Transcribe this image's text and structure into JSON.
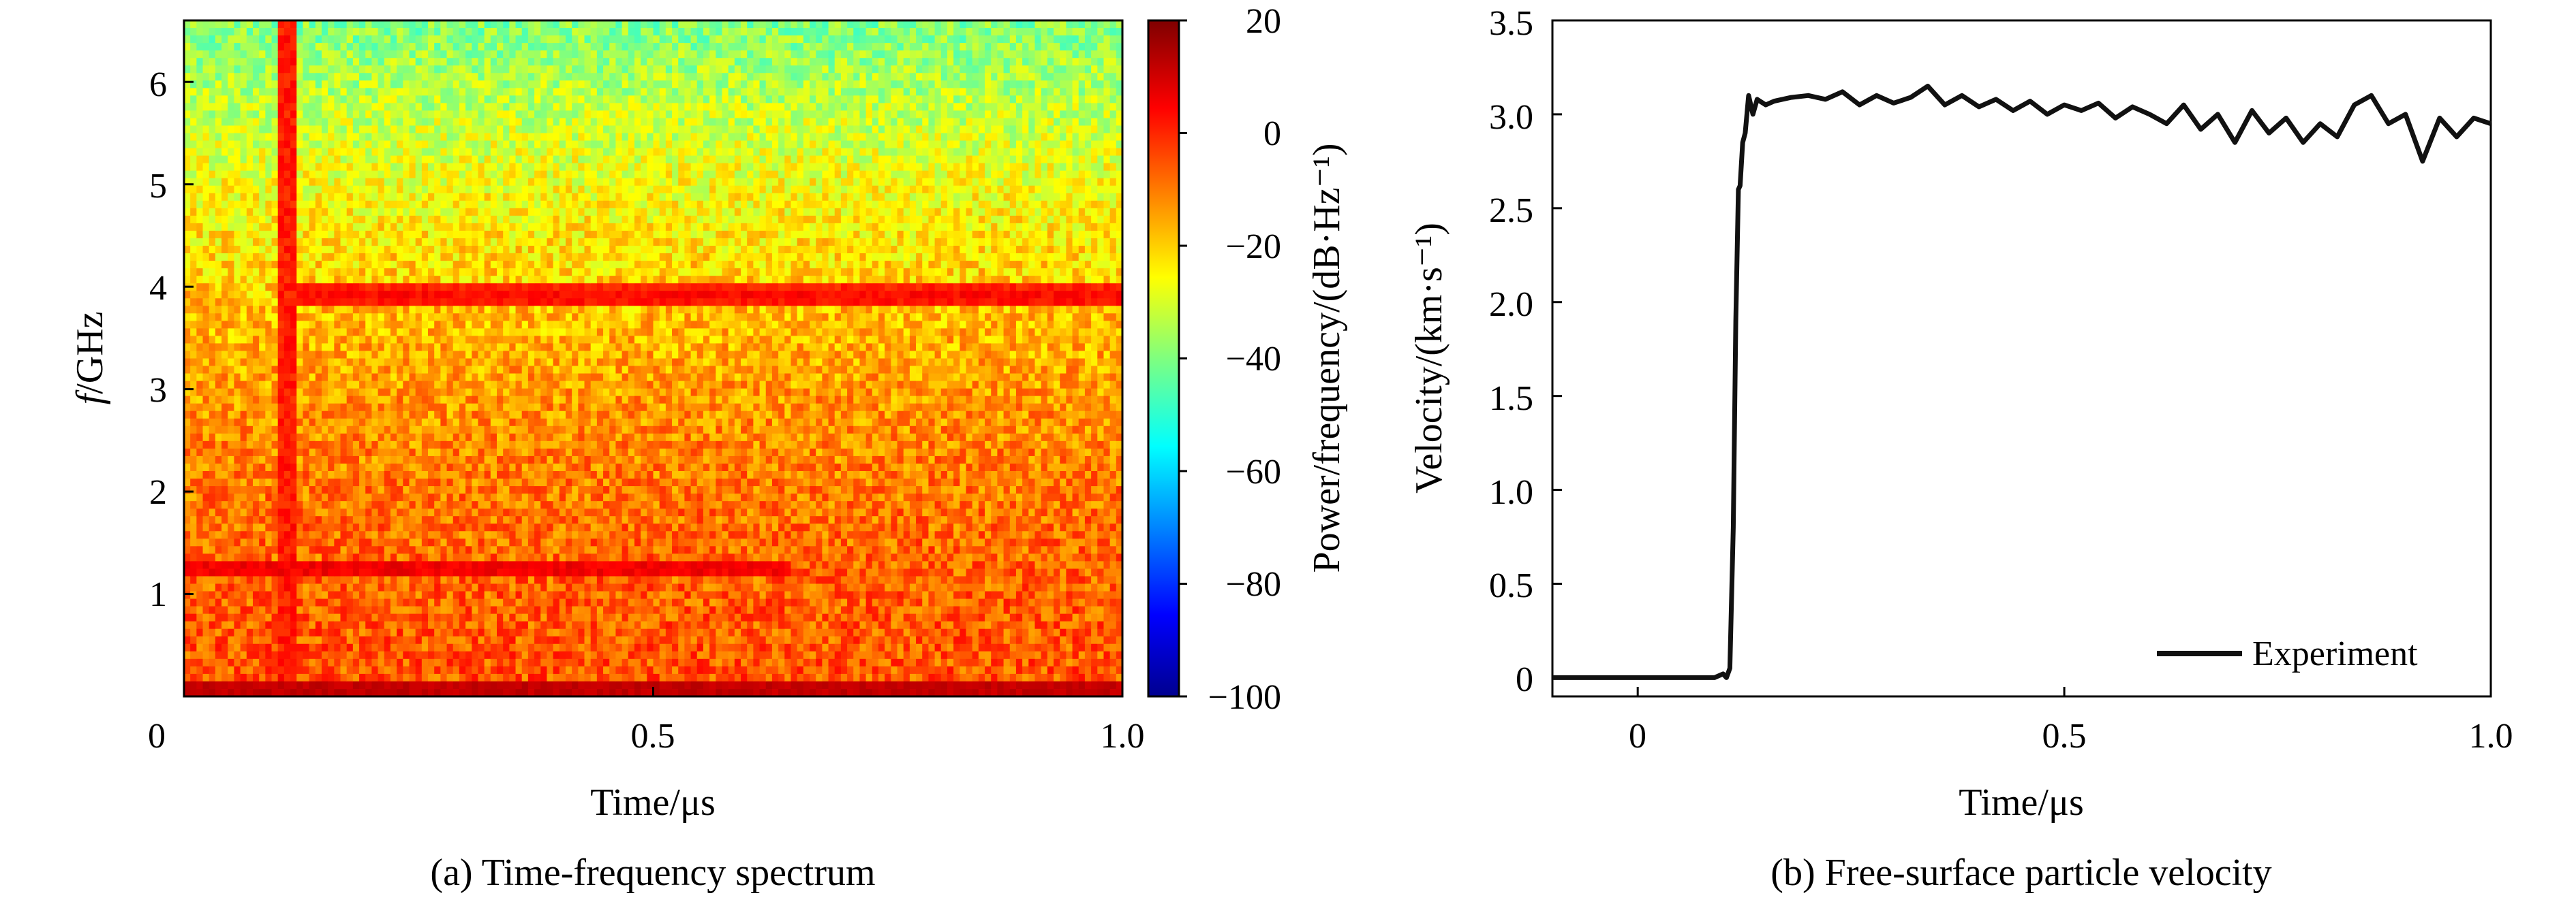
{
  "chart_data": [
    {
      "type": "heatmap",
      "xlabel": "Time/μs",
      "ylabel_italic": "f",
      "ylabel_rest": "/GHz",
      "caption": "(a) Time-frequency spectrum",
      "xlim": [
        0,
        1.0
      ],
      "ylim": [
        0,
        6.6
      ],
      "xticks": [
        0,
        0.5,
        1.0
      ],
      "xtick_labels": [
        "0",
        "0.5",
        "1.0"
      ],
      "yticks": [
        1,
        2,
        3,
        4,
        5,
        6
      ],
      "ytick_labels": [
        "1",
        "2",
        "3",
        "4",
        "5",
        "6"
      ],
      "colorbar": {
        "label": "Power/frequency/(dB·Hz⁻¹)",
        "range": [
          -100,
          20
        ],
        "ticks": [
          20,
          0,
          -20,
          -40,
          -60,
          -80,
          -100
        ],
        "tick_labels": [
          "20",
          "0",
          "−20",
          "−40",
          "−60",
          "−80",
          "−100"
        ],
        "colormap": "jet"
      },
      "features": {
        "background_low_freq_dB": -5,
        "background_high_freq_dB": -40,
        "rise_time_us": 0.11,
        "upper_band_GHz": 3.9,
        "upper_band_dB": 5,
        "lower_band_GHz": 1.25,
        "lower_band_dB": 8,
        "dc_band_GHz": 0.05,
        "dc_band_dB": 12
      }
    },
    {
      "type": "line",
      "xlabel": "Time/μs",
      "ylabel": "Velocity/(km·s⁻¹)",
      "caption": "(b) Free-surface particle velocity",
      "xlim": [
        -0.1,
        1.0
      ],
      "ylim": [
        -0.1,
        3.5
      ],
      "xticks": [
        0,
        0.5,
        1.0
      ],
      "xtick_labels": [
        "0",
        "0.5",
        "1.0"
      ],
      "yticks": [
        0,
        0.5,
        1.0,
        1.5,
        2.0,
        2.5,
        3.0,
        3.5
      ],
      "ytick_labels": [
        "0",
        "0.5",
        "1.0",
        "1.5",
        "2.0",
        "2.5",
        "3.0",
        "3.5"
      ],
      "legend": "top-right-bottom",
      "series": [
        {
          "name": "Experiment",
          "color": "#111111",
          "x": [
            -0.1,
            0.0,
            0.09,
            0.1,
            0.104,
            0.108,
            0.112,
            0.115,
            0.118,
            0.12,
            0.123,
            0.126,
            0.13,
            0.135,
            0.14,
            0.15,
            0.16,
            0.18,
            0.2,
            0.22,
            0.24,
            0.26,
            0.28,
            0.3,
            0.32,
            0.34,
            0.36,
            0.38,
            0.4,
            0.42,
            0.44,
            0.46,
            0.48,
            0.5,
            0.52,
            0.54,
            0.56,
            0.58,
            0.6,
            0.62,
            0.64,
            0.66,
            0.68,
            0.7,
            0.72,
            0.74,
            0.76,
            0.78,
            0.8,
            0.82,
            0.84,
            0.86,
            0.88,
            0.9,
            0.92,
            0.94,
            0.96,
            0.98,
            1.0
          ],
          "y": [
            0.0,
            0.0,
            0.0,
            0.02,
            0.0,
            0.05,
            0.8,
            1.9,
            2.6,
            2.62,
            2.85,
            2.9,
            3.1,
            3.0,
            3.08,
            3.05,
            3.07,
            3.09,
            3.1,
            3.08,
            3.12,
            3.05,
            3.1,
            3.06,
            3.09,
            3.15,
            3.05,
            3.1,
            3.04,
            3.08,
            3.02,
            3.07,
            3.0,
            3.05,
            3.02,
            3.06,
            2.98,
            3.04,
            3.0,
            2.95,
            3.05,
            2.92,
            3.0,
            2.85,
            3.02,
            2.9,
            2.98,
            2.85,
            2.95,
            2.88,
            3.05,
            3.1,
            2.95,
            3.0,
            2.75,
            2.98,
            2.88,
            2.98,
            2.95
          ]
        }
      ]
    }
  ]
}
